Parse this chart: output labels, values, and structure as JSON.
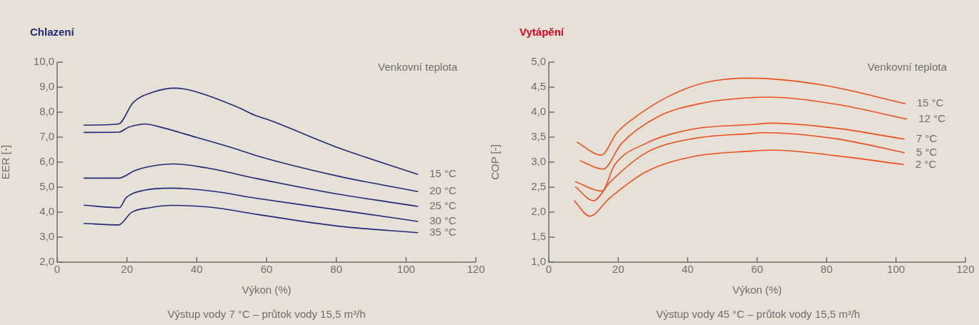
{
  "chart_data": [
    {
      "type": "line",
      "title": "Chlazení",
      "xlabel": "Výkon (%)",
      "ylabel": "EER [-]",
      "legend_title": "Venkovní teplota",
      "marker": "none",
      "annotations": [
        "Výstup vody 7 °C – průtok vody 15,5 m³/h"
      ],
      "xlim": [
        0,
        120
      ],
      "xticks": [
        0,
        20,
        40,
        60,
        80,
        100,
        120
      ],
      "ylim": [
        2,
        10
      ],
      "yticks": [
        {
          "value": 2,
          "label": "2,0"
        },
        {
          "value": 3,
          "label": "3,0"
        },
        {
          "value": 4,
          "label": "4,0"
        },
        {
          "value": 5,
          "label": "5,0"
        },
        {
          "value": 6,
          "label": "6,0"
        },
        {
          "value": 7,
          "label": "7,0"
        },
        {
          "value": 8,
          "label": "8,0"
        },
        {
          "value": 9,
          "label": "9,0"
        },
        {
          "value": 10,
          "label": "10,0"
        }
      ],
      "series": [
        {
          "name": "15 °C",
          "color": "#1f2a78",
          "x": [
            7.6,
            17.6,
            21.8,
            27.3,
            33.8,
            38.9,
            51.2,
            57.3,
            60,
            80.5,
            103.4
          ],
          "values": [
            7.48,
            7.53,
            8.39,
            8.79,
            8.96,
            8.85,
            8.23,
            7.84,
            7.72,
            6.58,
            5.51
          ]
        },
        {
          "name": "20 °C",
          "color": "#1f2a78",
          "x": [
            7.6,
            17.6,
            20.5,
            23.9,
            25,
            30.7,
            39.9,
            51.2,
            57.3,
            80.5,
            103.4
          ],
          "values": [
            7.19,
            7.2,
            7.4,
            7.51,
            7.53,
            7.36,
            6.99,
            6.53,
            6.25,
            5.44,
            4.82
          ]
        },
        {
          "name": "25 °C",
          "color": "#1f2a78",
          "x": [
            7.6,
            17.6,
            22.4,
            27.5,
            33.2,
            42.8,
            57.3,
            80.5,
            103.4
          ],
          "values": [
            5.36,
            5.36,
            5.67,
            5.85,
            5.93,
            5.77,
            5.34,
            4.72,
            4.23
          ]
        },
        {
          "name": "30 °C",
          "color": "#1f2a78",
          "x": [
            7.6,
            17.8,
            19.8,
            24.8,
            33,
            43.9,
            57.3,
            80.5,
            103.4
          ],
          "values": [
            4.28,
            4.18,
            4.58,
            4.87,
            4.96,
            4.85,
            4.55,
            4.09,
            3.63
          ]
        },
        {
          "name": "35 °C",
          "color": "#1f2a78",
          "x": [
            7.6,
            17.6,
            21.3,
            26.6,
            33,
            43.9,
            57.3,
            80.5,
            103.4
          ],
          "values": [
            3.55,
            3.49,
            3.99,
            4.18,
            4.27,
            4.2,
            3.91,
            3.44,
            3.18
          ]
        }
      ]
    },
    {
      "type": "line",
      "title": "Vytápění",
      "xlabel": "Výkon (%)",
      "ylabel": "COP [-]",
      "legend_title": "Venkovní teplota",
      "marker": "none",
      "annotations": [
        "Výstup vody 45 °C – průtok vody 15,5 m³/h"
      ],
      "xlim": [
        0,
        120
      ],
      "xticks": [
        0,
        20,
        40,
        60,
        80,
        100,
        120
      ],
      "ylim": [
        1,
        5
      ],
      "yticks": [
        {
          "value": 1,
          "label": "1,0"
        },
        {
          "value": 1.5,
          "label": "1,5"
        },
        {
          "value": 2,
          "label": "2,0"
        },
        {
          "value": 2.5,
          "label": "2,5"
        },
        {
          "value": 3,
          "label": "3,0"
        },
        {
          "value": 3.5,
          "label": "3,5"
        },
        {
          "value": 4,
          "label": "4,0"
        },
        {
          "value": 4.5,
          "label": "4,5"
        },
        {
          "value": 5,
          "label": "5,0"
        }
      ],
      "series": [
        {
          "name": "15 °C",
          "color": "#f04e1c",
          "x": [
            8.1,
            15.1,
            19.6,
            25.7,
            34.6,
            44.9,
            57.9,
            79.1,
            102.7
          ],
          "values": [
            3.4,
            3.14,
            3.59,
            3.94,
            4.32,
            4.59,
            4.68,
            4.54,
            4.17
          ]
        },
        {
          "name": "12 °C",
          "color": "#f04e1c",
          "x": [
            9,
            15.6,
            20.9,
            31.2,
            44.9,
            57.9,
            63.4,
            82.5,
            103.2
          ],
          "values": [
            3.03,
            2.86,
            3.37,
            3.9,
            4.19,
            4.29,
            4.3,
            4.16,
            3.86
          ]
        },
        {
          "name": "7 °C",
          "color": "#f04e1c",
          "x": [
            7.6,
            15.3,
            18.9,
            27.8,
            41.5,
            57.9,
            64.7,
            82.5,
            102.5
          ],
          "values": [
            2.61,
            2.42,
            2.94,
            3.37,
            3.66,
            3.75,
            3.78,
            3.68,
            3.46
          ]
        },
        {
          "name": "5 °C",
          "color": "#f04e1c",
          "x": [
            7.6,
            12.9,
            17.5,
            27.8,
            41.5,
            57.9,
            62,
            82.5,
            102.5
          ],
          "values": [
            2.51,
            2.23,
            2.59,
            3.18,
            3.47,
            3.57,
            3.59,
            3.47,
            3.19
          ]
        },
        {
          "name": "2 °C",
          "color": "#f04e1c",
          "x": [
            7.3,
            11.8,
            17.5,
            27.8,
            41.5,
            57.9,
            64.7,
            82.5,
            102.3
          ],
          "values": [
            2.23,
            1.92,
            2.28,
            2.8,
            3.11,
            3.22,
            3.24,
            3.13,
            2.95
          ]
        }
      ]
    }
  ]
}
